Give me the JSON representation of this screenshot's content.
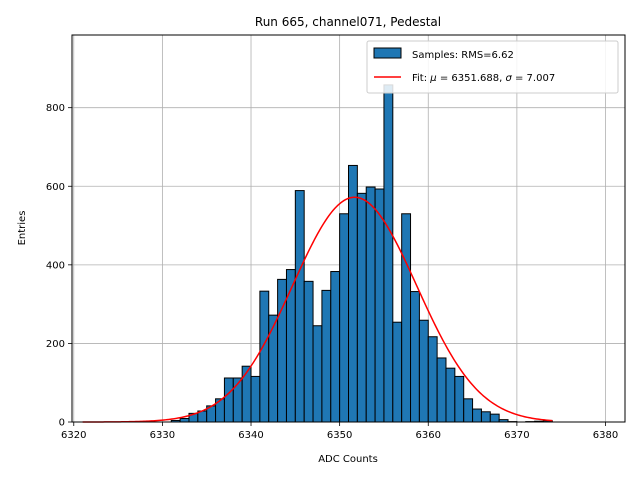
{
  "chart_data": {
    "type": "bar",
    "title": "Run 665, channel071, Pedestal",
    "xlabel": "ADC Counts",
    "ylabel": "Entries",
    "xlim": [
      6319.8,
      6382.2
    ],
    "ylim": [
      0,
      985
    ],
    "grid": true,
    "legend_position": "top-right",
    "xticks": [
      6320,
      6330,
      6340,
      6350,
      6360,
      6370,
      6380
    ],
    "yticks": [
      0,
      200,
      400,
      600,
      800
    ],
    "histogram": {
      "name": "Samples: RMS=6.62",
      "bin_width": 1,
      "bin_starts": [
        6331,
        6332,
        6333,
        6334,
        6335,
        6336,
        6337,
        6338,
        6339,
        6340,
        6341,
        6342,
        6343,
        6344,
        6345,
        6346,
        6347,
        6348,
        6349,
        6350,
        6351,
        6352,
        6353,
        6354,
        6355,
        6356,
        6357,
        6358,
        6359,
        6360,
        6361,
        6362,
        6363,
        6364,
        6365,
        6366,
        6367,
        6368,
        6369,
        6370,
        6371,
        6372,
        6373
      ],
      "counts": [
        4,
        9,
        22,
        28,
        41,
        59,
        112,
        112,
        142,
        116,
        333,
        272,
        363,
        388,
        589,
        358,
        245,
        335,
        383,
        530,
        653,
        582,
        598,
        593,
        858,
        254,
        530,
        332,
        259,
        217,
        163,
        137,
        116,
        59,
        33,
        26,
        20,
        6,
        1,
        0,
        1,
        2,
        3
      ],
      "color": "#1f77b4"
    },
    "fit": {
      "name_prefix": "Fit: ",
      "mu_symbol": "μ",
      "mu_text": " = 6351.688, ",
      "sigma_symbol": "σ",
      "sigma_text": " = 7.007",
      "mu": 6351.688,
      "sigma": 7.007,
      "amplitude": 572,
      "x_range": [
        6321,
        6374
      ],
      "color": "#ff0000"
    }
  }
}
